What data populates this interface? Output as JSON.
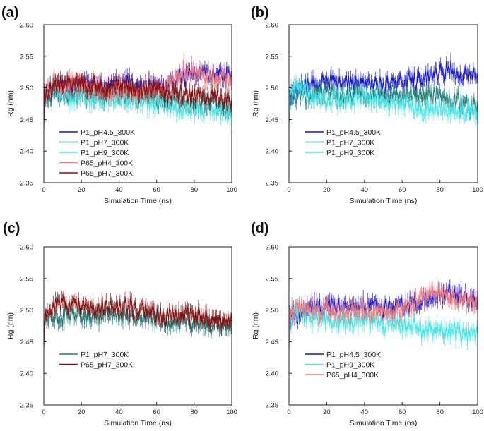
{
  "colors": {
    "P1_pH4.5_300K": "#1414d2",
    "P1_pH7_300K": "#1f7a74",
    "P1_pH9_300K": "#44e6e6",
    "P65_pH4_300K": "#f07a78",
    "P65_pH7_300K": "#8b0d0d"
  },
  "chart_data": [
    {
      "type": "line",
      "panel_label": "(a)",
      "xlabel": "Simulation Time (ns)",
      "ylabel": "Rg (nm)",
      "xlim": [
        0,
        100
      ],
      "ylim": [
        2.35,
        2.6
      ],
      "x_ticks": [
        "0",
        "20",
        "40",
        "60",
        "80",
        "100"
      ],
      "y_ticks": [
        "2.35",
        "2.40",
        "2.45",
        "2.50",
        "2.55",
        "2.60"
      ],
      "x": [
        0,
        5,
        10,
        15,
        20,
        25,
        30,
        35,
        40,
        45,
        50,
        55,
        60,
        65,
        70,
        75,
        80,
        85,
        90,
        95,
        100
      ],
      "series": [
        {
          "name": "P1_pH4.5_300K",
          "values": [
            2.485,
            2.5,
            2.502,
            2.504,
            2.505,
            2.503,
            2.502,
            2.504,
            2.506,
            2.505,
            2.503,
            2.504,
            2.503,
            2.506,
            2.512,
            2.518,
            2.522,
            2.527,
            2.525,
            2.522,
            2.518
          ]
        },
        {
          "name": "P1_pH7_300K",
          "values": [
            2.48,
            2.49,
            2.488,
            2.49,
            2.492,
            2.489,
            2.487,
            2.49,
            2.491,
            2.489,
            2.486,
            2.487,
            2.484,
            2.481,
            2.48,
            2.478,
            2.476,
            2.476,
            2.474,
            2.472,
            2.47
          ]
        },
        {
          "name": "P1_pH9_300K",
          "values": [
            2.488,
            2.5,
            2.492,
            2.485,
            2.486,
            2.484,
            2.483,
            2.485,
            2.486,
            2.483,
            2.481,
            2.48,
            2.478,
            2.474,
            2.47,
            2.467,
            2.466,
            2.467,
            2.465,
            2.462,
            2.46
          ]
        },
        {
          "name": "P65_pH4_300K",
          "values": [
            2.495,
            2.505,
            2.505,
            2.5,
            2.505,
            2.498,
            2.494,
            2.497,
            2.5,
            2.498,
            2.494,
            2.496,
            2.5,
            2.506,
            2.518,
            2.528,
            2.526,
            2.52,
            2.516,
            2.514,
            2.513
          ]
        },
        {
          "name": "P65_pH7_300K",
          "values": [
            2.49,
            2.5,
            2.505,
            2.506,
            2.508,
            2.506,
            2.5,
            2.503,
            2.505,
            2.503,
            2.498,
            2.5,
            2.495,
            2.492,
            2.494,
            2.492,
            2.488,
            2.486,
            2.486,
            2.484,
            2.482
          ]
        }
      ],
      "legend": [
        "P1_pH4.5_300K",
        "P1_pH7_300K",
        "P1_pH9_300K",
        "P65_pH4_300K",
        "P65_pH7_300K"
      ],
      "legend_position": "bottom-left"
    },
    {
      "type": "line",
      "panel_label": "(b)",
      "xlabel": "Simulation Time (ns)",
      "ylabel": "Rg (nm)",
      "xlim": [
        0,
        100
      ],
      "ylim": [
        2.35,
        2.6
      ],
      "x_ticks": [
        "0",
        "20",
        "40",
        "60",
        "80",
        "100"
      ],
      "y_ticks": [
        "2.35",
        "2.40",
        "2.45",
        "2.50",
        "2.55",
        "2.60"
      ],
      "x": [
        0,
        5,
        10,
        15,
        20,
        25,
        30,
        35,
        40,
        45,
        50,
        55,
        60,
        65,
        70,
        75,
        80,
        85,
        90,
        95,
        100
      ],
      "series": [
        {
          "name": "P1_pH4.5_300K",
          "values": [
            2.485,
            2.5,
            2.505,
            2.507,
            2.51,
            2.509,
            2.507,
            2.508,
            2.51,
            2.508,
            2.506,
            2.508,
            2.506,
            2.51,
            2.516,
            2.52,
            2.525,
            2.528,
            2.524,
            2.519,
            2.512
          ]
        },
        {
          "name": "P1_pH7_300K",
          "values": [
            2.48,
            2.492,
            2.488,
            2.49,
            2.493,
            2.49,
            2.488,
            2.491,
            2.492,
            2.49,
            2.487,
            2.488,
            2.485,
            2.488,
            2.49,
            2.489,
            2.486,
            2.482,
            2.478,
            2.474,
            2.47
          ]
        },
        {
          "name": "P1_pH9_300K",
          "values": [
            2.488,
            2.505,
            2.49,
            2.482,
            2.484,
            2.483,
            2.481,
            2.483,
            2.484,
            2.482,
            2.479,
            2.478,
            2.475,
            2.472,
            2.469,
            2.467,
            2.466,
            2.465,
            2.465,
            2.463,
            2.462
          ]
        }
      ],
      "legend": [
        "P1_pH4.5_300K",
        "P1_pH7_300K",
        "P1_pH9_300K"
      ],
      "legend_position": "bottom-left"
    },
    {
      "type": "line",
      "panel_label": "(c)",
      "xlabel": "Simulation Time (ns)",
      "ylabel": "Rg (nm)",
      "xlim": [
        0,
        100
      ],
      "ylim": [
        2.35,
        2.6
      ],
      "x_ticks": [
        "0",
        "20",
        "40",
        "60",
        "80",
        "100"
      ],
      "y_ticks": [
        "2.35",
        "2.40",
        "2.45",
        "2.50",
        "2.55",
        "2.60"
      ],
      "x": [
        0,
        5,
        10,
        15,
        20,
        25,
        30,
        35,
        40,
        45,
        50,
        55,
        60,
        65,
        70,
        75,
        80,
        85,
        90,
        95,
        100
      ],
      "series": [
        {
          "name": "P1_pH7_300K",
          "values": [
            2.48,
            2.492,
            2.49,
            2.492,
            2.495,
            2.492,
            2.489,
            2.492,
            2.494,
            2.492,
            2.488,
            2.489,
            2.484,
            2.482,
            2.481,
            2.48,
            2.478,
            2.478,
            2.477,
            2.475,
            2.474
          ]
        },
        {
          "name": "P65_pH7_300K",
          "values": [
            2.49,
            2.505,
            2.508,
            2.508,
            2.51,
            2.506,
            2.5,
            2.504,
            2.508,
            2.505,
            2.498,
            2.5,
            2.494,
            2.49,
            2.494,
            2.493,
            2.49,
            2.488,
            2.487,
            2.485,
            2.484
          ]
        }
      ],
      "legend": [
        "P1_pH7_300K",
        "P65_pH7_300K"
      ],
      "legend_position": "bottom-left"
    },
    {
      "type": "line",
      "panel_label": "(d)",
      "xlabel": "Simulation Time (ns)",
      "ylabel": "Rg (nm)",
      "xlim": [
        0,
        100
      ],
      "ylim": [
        2.35,
        2.6
      ],
      "x_ticks": [
        "0",
        "20",
        "40",
        "60",
        "80",
        "100"
      ],
      "y_ticks": [
        "2.35",
        "2.40",
        "2.45",
        "2.50",
        "2.55",
        "2.60"
      ],
      "x": [
        0,
        5,
        10,
        15,
        20,
        25,
        30,
        35,
        40,
        45,
        50,
        55,
        60,
        65,
        70,
        75,
        80,
        85,
        90,
        95,
        100
      ],
      "series": [
        {
          "name": "P1_pH4.5_300K",
          "values": [
            2.485,
            2.495,
            2.502,
            2.505,
            2.508,
            2.506,
            2.504,
            2.506,
            2.508,
            2.506,
            2.504,
            2.506,
            2.504,
            2.508,
            2.514,
            2.52,
            2.525,
            2.528,
            2.524,
            2.52,
            2.515
          ]
        },
        {
          "name": "P1_pH9_300K",
          "values": [
            2.488,
            2.5,
            2.49,
            2.484,
            2.486,
            2.484,
            2.482,
            2.484,
            2.486,
            2.483,
            2.48,
            2.479,
            2.476,
            2.472,
            2.469,
            2.467,
            2.466,
            2.466,
            2.465,
            2.462,
            2.46
          ]
        },
        {
          "name": "P65_pH4_300K",
          "values": [
            2.495,
            2.505,
            2.505,
            2.5,
            2.505,
            2.499,
            2.495,
            2.498,
            2.501,
            2.499,
            2.495,
            2.497,
            2.501,
            2.507,
            2.518,
            2.528,
            2.526,
            2.52,
            2.516,
            2.514,
            2.513
          ]
        }
      ],
      "legend": [
        "P1_pH4.5_300K",
        "P1_pH9_300K",
        "P65_pH4_300K"
      ],
      "legend_position": "bottom-left"
    }
  ]
}
